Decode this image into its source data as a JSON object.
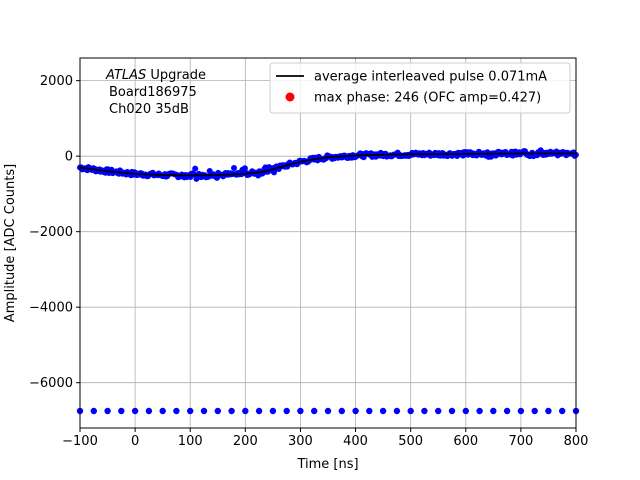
{
  "chart_data": {
    "type": "scatter",
    "xlabel": "Time [ns]",
    "ylabel": "Amplitude [ADC Counts]",
    "xlim": [
      -100,
      800
    ],
    "ylim": [
      -7200,
      2600
    ],
    "x_ticks": [
      -100,
      0,
      100,
      200,
      300,
      400,
      500,
      600,
      700,
      800
    ],
    "y_ticks": [
      -6000,
      -4000,
      -2000,
      0,
      2000
    ],
    "x_tick_labels": [
      "−100",
      "0",
      "100",
      "200",
      "300",
      "400",
      "500",
      "600",
      "700",
      "800"
    ],
    "y_tick_labels": [
      "−6000",
      "−4000",
      "−2000",
      "0",
      "2000"
    ],
    "grid": true,
    "legend_position": "top-right",
    "annotation": {
      "line1_italic": "ATLAS",
      "line1_rest": " Upgrade",
      "line2": "Board186975",
      "line3": "Ch020 35dB"
    },
    "series": [
      {
        "name": "average interleaved pulse 0.071mA",
        "kind": "line",
        "color": "#000000",
        "x": [
          -100,
          -50,
          0,
          50,
          100,
          150,
          200,
          230,
          250,
          280,
          300,
          330,
          350,
          400,
          450,
          500,
          600,
          700,
          800
        ],
        "y": [
          -300,
          -400,
          -470,
          -500,
          -510,
          -500,
          -470,
          -420,
          -350,
          -220,
          -150,
          -70,
          -30,
          20,
          40,
          50,
          60,
          70,
          70
        ]
      },
      {
        "name": "max phase: 246 (OFC amp=0.427)",
        "kind": "scatter-legend-only",
        "color": "#ff0000"
      },
      {
        "name": "",
        "kind": "scatter",
        "color": "#0000ff",
        "baseline_y": -6750,
        "baseline_x_start": -100,
        "baseline_x_step": 25
      }
    ]
  },
  "colors": {
    "grid": "#b0b0b0",
    "scatter": "#0000ff",
    "line": "#000000",
    "legend_marker": "#ff0000",
    "legend_border": "#cccccc"
  }
}
